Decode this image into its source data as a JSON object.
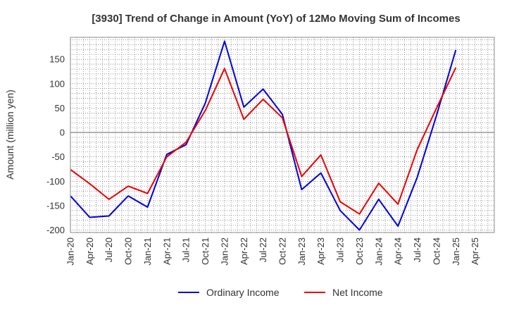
{
  "chart_data": {
    "type": "line",
    "title": "[3930]  Trend of Change in Amount (YoY) of 12Mo Moving Sum of Incomes",
    "ylabel": "Amount (million yen)",
    "xlabel": "",
    "ylim": [
      -205,
      195
    ],
    "yticks": [
      150,
      100,
      50,
      0,
      -50,
      -100,
      -150,
      -200
    ],
    "x": [
      "Jan-20",
      "Apr-20",
      "Jul-20",
      "Oct-20",
      "Jan-21",
      "Apr-21",
      "Jul-21",
      "Oct-21",
      "Jan-22",
      "Apr-22",
      "Jul-22",
      "Oct-22",
      "Jan-23",
      "Apr-23",
      "Jul-23",
      "Oct-23",
      "Jan-24",
      "Apr-24",
      "Jul-24",
      "Oct-24",
      "Jan-25",
      "Apr-25"
    ],
    "grid": true,
    "legend_position": "bottom",
    "series": [
      {
        "name": "Ordinary Income",
        "color": "#0000dd",
        "values": [
          -130,
          -174,
          -171,
          -130,
          -153,
          -45,
          -25,
          60,
          187,
          52,
          89,
          37,
          -117,
          -83,
          -160,
          -200,
          -137,
          -192,
          -92,
          35,
          169,
          null
        ]
      },
      {
        "name": "Net Income",
        "color": "#ee0000",
        "values": [
          -76,
          -105,
          -137,
          -110,
          -125,
          -50,
          -20,
          45,
          131,
          27,
          68,
          30,
          -90,
          -46,
          -142,
          -167,
          -104,
          -147,
          -35,
          50,
          133,
          null
        ]
      }
    ]
  }
}
